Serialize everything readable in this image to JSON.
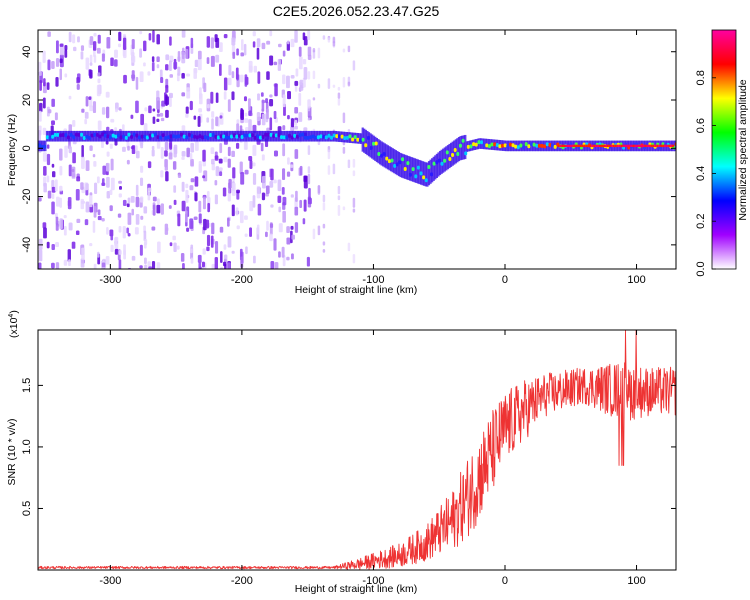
{
  "title": "C2E5.2026.052.23.47.G25",
  "chart_data": [
    {
      "type": "heatmap",
      "xlabel": "Height of straight line (km)",
      "ylabel": "Frequency (Hz)",
      "xlim": [
        -355,
        130
      ],
      "ylim": [
        -50,
        49
      ],
      "xticks": [
        -300,
        -200,
        -100,
        0,
        100
      ],
      "yticks": [
        40,
        20,
        0,
        -20,
        -40
      ],
      "colorbar": {
        "label": "Normalized spectral amplitude",
        "range": [
          0,
          1
        ],
        "ticks": [
          "0.0",
          "0.2",
          "0.4",
          "0.6",
          "0.8"
        ],
        "tick_values": [
          0.0,
          0.2,
          0.4,
          0.6,
          0.8
        ],
        "colors": [
          "#ffffff",
          "#a000ff",
          "#0000ff",
          "#00ffff",
          "#00ff00",
          "#ffff00",
          "#ff0000",
          "#ff00a0"
        ]
      },
      "main_track": [
        {
          "x": -350,
          "f": 5
        },
        {
          "x": -150,
          "f": 5
        },
        {
          "x": -130,
          "f": 5
        },
        {
          "x": -110,
          "f": 4
        },
        {
          "x": -95,
          "f": -2
        },
        {
          "x": -80,
          "f": -7
        },
        {
          "x": -60,
          "f": -11
        },
        {
          "x": -50,
          "f": -6
        },
        {
          "x": -35,
          "f": 0
        },
        {
          "x": -20,
          "f": 2
        },
        {
          "x": 0,
          "f": 1
        },
        {
          "x": 50,
          "f": 1
        },
        {
          "x": 128,
          "f": 1
        }
      ],
      "noise_region": [
        -355,
        -150
      ]
    },
    {
      "type": "line",
      "xlabel": "Height of straight line (km)",
      "ylabel": "SNR (10 * v/v)",
      "multiplier_label": "(x10",
      "multiplier_exp": "4",
      "multiplier_close": ")",
      "xlim": [
        -355,
        130
      ],
      "ylim": [
        0,
        1.95
      ],
      "xticks": [
        -300,
        -200,
        -100,
        0,
        100
      ],
      "yticks": [
        0.5,
        1.0,
        1.5
      ],
      "ytick_labels": [
        "0.5",
        "1.0",
        "1.5"
      ],
      "color": "#ee3333",
      "envelope": [
        {
          "x": -355,
          "mean": 0.02,
          "spread": 0.01
        },
        {
          "x": -130,
          "mean": 0.02,
          "spread": 0.01
        },
        {
          "x": -110,
          "mean": 0.05,
          "spread": 0.05
        },
        {
          "x": -80,
          "mean": 0.12,
          "spread": 0.1
        },
        {
          "x": -60,
          "mean": 0.22,
          "spread": 0.15
        },
        {
          "x": -40,
          "mean": 0.4,
          "spread": 0.25
        },
        {
          "x": -25,
          "mean": 0.65,
          "spread": 0.35
        },
        {
          "x": -10,
          "mean": 0.95,
          "spread": 0.35
        },
        {
          "x": 0,
          "mean": 1.15,
          "spread": 0.3
        },
        {
          "x": 15,
          "mean": 1.3,
          "spread": 0.25
        },
        {
          "x": 30,
          "mean": 1.42,
          "spread": 0.18
        },
        {
          "x": 60,
          "mean": 1.5,
          "spread": 0.15
        },
        {
          "x": 90,
          "mean": 1.45,
          "spread": 0.25
        },
        {
          "x": 110,
          "mean": 1.45,
          "spread": 0.2
        },
        {
          "x": 130,
          "mean": 1.45,
          "spread": 0.2
        }
      ]
    }
  ]
}
